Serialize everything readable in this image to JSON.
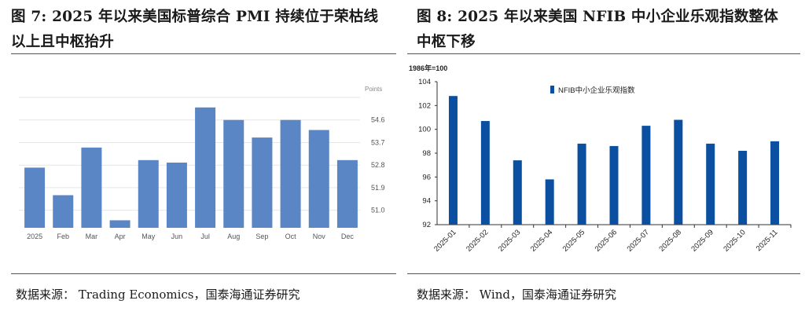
{
  "left": {
    "title_line1": "图 7: 2025 年以来美国标普综合 PMI 持续位于荣枯线",
    "title_line2": "以上且中枢抬升",
    "source": "数据来源： Trading Economics，国泰海通证券研究",
    "colors": {
      "bar": "#5b86c5",
      "grid": "#e6e6e6",
      "axis_text": "#555555"
    }
  },
  "right": {
    "title_line1": "图 8: 2025 年以来美国 NFIB 中小企业乐观指数整体",
    "title_line2": "中枢下移",
    "source": "数据来源： Wind，国泰海通证券研究",
    "colors": {
      "bar": "#0a4fa0",
      "axis": "#333333"
    }
  },
  "chart_data": [
    {
      "type": "bar",
      "title": "",
      "ylabel": "Points",
      "categories": [
        "2025",
        "Feb",
        "Mar",
        "Apr",
        "May",
        "Jun",
        "Jul",
        "Aug",
        "Sep",
        "Oct",
        "Nov",
        "Dec"
      ],
      "values": [
        52.7,
        51.6,
        53.5,
        50.6,
        53.0,
        52.9,
        55.1,
        54.6,
        53.9,
        54.6,
        54.2,
        53.0
      ],
      "yticks": [
        51.0,
        51.9,
        52.8,
        53.7,
        54.6
      ],
      "ylim": [
        50.3,
        55.5
      ],
      "grid": true,
      "legend": "none"
    },
    {
      "type": "bar",
      "title": "",
      "unit_note": "1986年=100",
      "categories": [
        "2025-01",
        "2025-02",
        "2025-03",
        "2025-04",
        "2025-05",
        "2025-06",
        "2025-07",
        "2025-08",
        "2025-09",
        "2025-10",
        "2025-11"
      ],
      "series": [
        {
          "name": "NFIB中小企业乐观指数",
          "values": [
            102.8,
            100.7,
            97.4,
            95.8,
            98.8,
            98.6,
            100.3,
            100.8,
            98.8,
            98.2,
            99.0
          ]
        }
      ],
      "yticks": [
        92,
        94,
        96,
        98,
        100,
        102,
        104
      ],
      "ylim": [
        92,
        104
      ],
      "grid": false,
      "legend": "top-left"
    }
  ]
}
